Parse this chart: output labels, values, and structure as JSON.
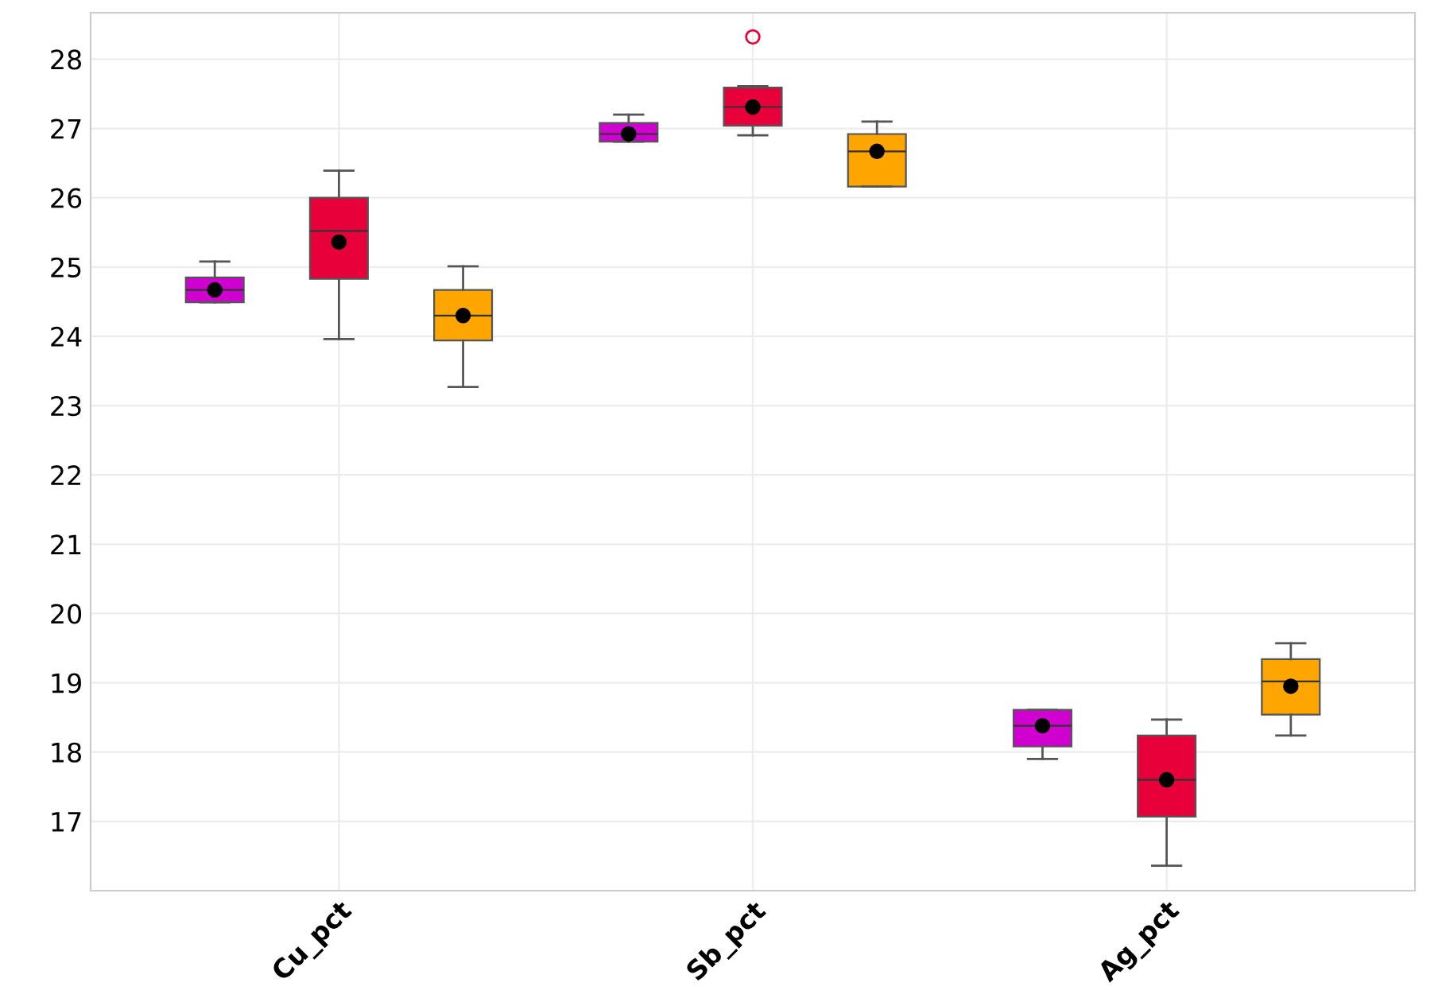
{
  "chart_data": {
    "type": "box",
    "categories": [
      "Cu_pct",
      "Sb_pct",
      "Ag_pct"
    ],
    "ylim": [
      16.0,
      28.67
    ],
    "yticks": [
      17,
      18,
      19,
      20,
      21,
      22,
      23,
      24,
      25,
      26,
      27,
      28
    ],
    "grid": true,
    "series": [
      {
        "color": "#d000d0",
        "boxes": [
          {
            "low": 24.49,
            "q1": 24.49,
            "median": 24.67,
            "q3": 24.85,
            "high": 25.08,
            "mean": 24.67
          },
          {
            "low": 26.81,
            "q1": 26.81,
            "median": 26.92,
            "q3": 27.08,
            "high": 27.2,
            "mean": 26.92
          },
          {
            "low": 17.9,
            "q1": 18.08,
            "median": 18.38,
            "q3": 18.61,
            "high": 18.61,
            "mean": 18.38
          }
        ]
      },
      {
        "color": "#e8003a",
        "boxes": [
          {
            "low": 23.96,
            "q1": 24.83,
            "median": 25.52,
            "q3": 26.0,
            "high": 26.39,
            "mean": 25.36
          },
          {
            "low": 26.9,
            "q1": 27.04,
            "median": 27.31,
            "q3": 27.59,
            "high": 27.61,
            "mean": 27.31,
            "outliers": [
              28.32
            ]
          },
          {
            "low": 16.36,
            "q1": 17.07,
            "median": 17.6,
            "q3": 18.24,
            "high": 18.47,
            "mean": 17.6
          }
        ]
      },
      {
        "color": "#ffa500",
        "boxes": [
          {
            "low": 23.27,
            "q1": 23.94,
            "median": 24.3,
            "q3": 24.67,
            "high": 25.01,
            "mean": 24.3
          },
          {
            "low": 26.16,
            "q1": 26.16,
            "median": 26.67,
            "q3": 26.92,
            "high": 27.1,
            "mean": 26.67
          },
          {
            "low": 18.24,
            "q1": 18.54,
            "median": 19.02,
            "q3": 19.34,
            "high": 19.57,
            "mean": 18.95
          }
        ]
      }
    ]
  }
}
